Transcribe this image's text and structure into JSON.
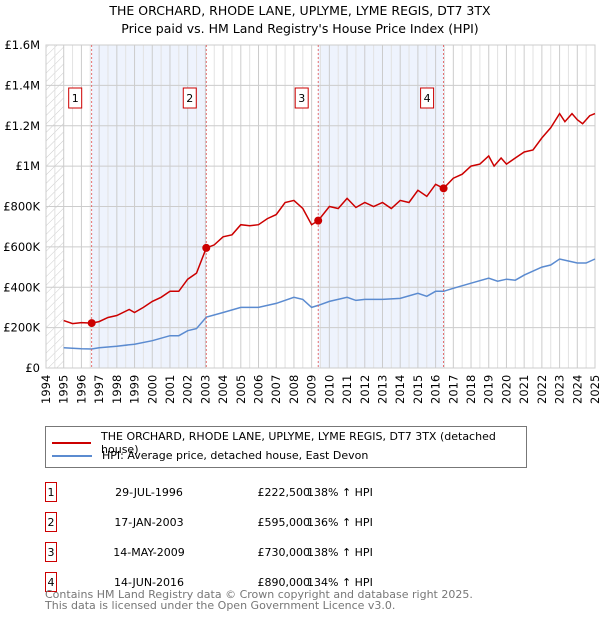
{
  "title": "THE ORCHARD, RHODE LANE, UPLYME, LYME REGIS, DT7 3TX",
  "subtitle": "Price paid vs. HM Land Registry's House Price Index (HPI)",
  "chart_data": {
    "type": "line",
    "xlim": [
      1994,
      2025
    ],
    "ylim": [
      0,
      1600000
    ],
    "yticks": [
      {
        "v": 0,
        "label": "£0"
      },
      {
        "v": 200000,
        "label": "£200K"
      },
      {
        "v": 400000,
        "label": "£400K"
      },
      {
        "v": 600000,
        "label": "£600K"
      },
      {
        "v": 800000,
        "label": "£800K"
      },
      {
        "v": 1000000,
        "label": "£1M"
      },
      {
        "v": 1200000,
        "label": "£1.2M"
      },
      {
        "v": 1400000,
        "label": "£1.4M"
      },
      {
        "v": 1600000,
        "label": "£1.6M"
      }
    ],
    "xticks": [
      1994,
      1995,
      1996,
      1997,
      1998,
      1999,
      2000,
      2001,
      2002,
      2003,
      2004,
      2005,
      2006,
      2007,
      2008,
      2009,
      2010,
      2011,
      2012,
      2013,
      2014,
      2015,
      2016,
      2017,
      2018,
      2019,
      2020,
      2021,
      2022,
      2023,
      2024,
      2025
    ],
    "grid": true,
    "shaded_periods": [
      [
        1996.58,
        2003.05
      ],
      [
        2009.37,
        2016.45
      ]
    ],
    "series": [
      {
        "name": "THE ORCHARD, RHODE LANE, UPLYME, LYME REGIS, DT7 3TX (detached house)",
        "color": "#cc0000",
        "x": [
          1995,
          1995.5,
          1996,
          1996.58,
          1997,
          1997.5,
          1998,
          1998.7,
          1999,
          1999.5,
          2000,
          2000.5,
          2001,
          2001.5,
          2002,
          2002.5,
          2003.05,
          2003.5,
          2004,
          2004.5,
          2005,
          2005.5,
          2006,
          2006.5,
          2007,
          2007.5,
          2008,
          2008.5,
          2009,
          2009.37,
          2010,
          2010.5,
          2011,
          2011.5,
          2012,
          2012.5,
          2013,
          2013.5,
          2014,
          2014.5,
          2015,
          2015.5,
          2016,
          2016.45,
          2017,
          2017.5,
          2018,
          2018.5,
          2019,
          2019.3,
          2019.7,
          2020,
          2020.5,
          2021,
          2021.5,
          2022,
          2022.5,
          2023,
          2023.3,
          2023.7,
          2024,
          2024.3,
          2024.7,
          2025
        ],
        "y": [
          235000,
          220000,
          225000,
          222500,
          230000,
          250000,
          260000,
          290000,
          275000,
          300000,
          330000,
          350000,
          380000,
          380000,
          440000,
          470000,
          595000,
          610000,
          650000,
          660000,
          710000,
          705000,
          710000,
          740000,
          760000,
          820000,
          830000,
          790000,
          710000,
          730000,
          800000,
          790000,
          840000,
          795000,
          820000,
          800000,
          820000,
          790000,
          830000,
          820000,
          880000,
          850000,
          910000,
          890000,
          940000,
          960000,
          1000000,
          1010000,
          1050000,
          1000000,
          1040000,
          1010000,
          1040000,
          1070000,
          1080000,
          1140000,
          1190000,
          1260000,
          1220000,
          1260000,
          1230000,
          1210000,
          1250000,
          1260000
        ]
      },
      {
        "name": "HPI: Average price, detached house, East Devon",
        "color": "#5b8bd0",
        "x": [
          1995,
          1996,
          1996.58,
          1997,
          1998,
          1999,
          2000,
          2001,
          2001.5,
          2002,
          2002.5,
          2003.05,
          2004,
          2005,
          2006,
          2007,
          2008,
          2008.5,
          2009,
          2009.37,
          2010,
          2011,
          2011.5,
          2012,
          2013,
          2014,
          2015,
          2015.5,
          2016,
          2016.45,
          2017,
          2018,
          2019,
          2019.5,
          2020,
          2020.5,
          2021,
          2022,
          2022.5,
          2023,
          2023.5,
          2024,
          2024.5,
          2025
        ],
        "y": [
          100000,
          95000,
          94000,
          100000,
          108000,
          118000,
          135000,
          160000,
          160000,
          185000,
          195000,
          252000,
          275000,
          300000,
          300000,
          320000,
          350000,
          340000,
          300000,
          310000,
          330000,
          350000,
          335000,
          340000,
          340000,
          345000,
          370000,
          355000,
          380000,
          380000,
          395000,
          420000,
          445000,
          430000,
          440000,
          435000,
          460000,
          500000,
          510000,
          540000,
          530000,
          520000,
          520000,
          540000
        ]
      }
    ],
    "sales": [
      {
        "num": "1",
        "x": 1996.58,
        "y": 222500
      },
      {
        "num": "2",
        "x": 2003.05,
        "y": 595000
      },
      {
        "num": "3",
        "x": 2009.37,
        "y": 730000
      },
      {
        "num": "4",
        "x": 2016.45,
        "y": 890000
      }
    ]
  },
  "legend": {
    "property": "THE ORCHARD, RHODE LANE, UPLYME, LYME REGIS, DT7 3TX (detached house)",
    "hpi": "HPI: Average price, detached house, East Devon"
  },
  "transactions": [
    {
      "num": "1",
      "date": "29-JUL-1996",
      "price": "£222,500",
      "hpi": "138% ↑ HPI"
    },
    {
      "num": "2",
      "date": "17-JAN-2003",
      "price": "£595,000",
      "hpi": "136% ↑ HPI"
    },
    {
      "num": "3",
      "date": "14-MAY-2009",
      "price": "£730,000",
      "hpi": "138% ↑ HPI"
    },
    {
      "num": "4",
      "date": "14-JUN-2016",
      "price": "£890,000",
      "hpi": "134% ↑ HPI"
    }
  ],
  "footer": {
    "line1": "Contains HM Land Registry data © Crown copyright and database right 2025.",
    "line2": "This data is licensed under the Open Government Licence v3.0."
  }
}
